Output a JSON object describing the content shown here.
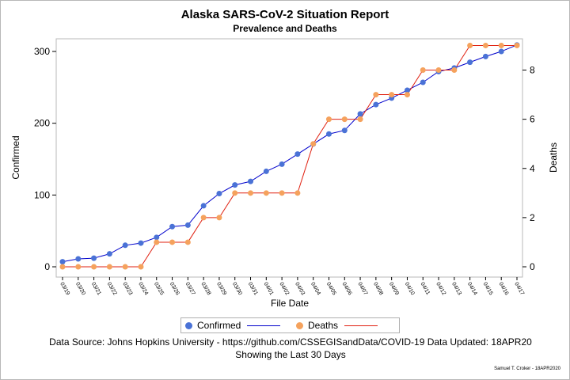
{
  "header": {
    "title": "Alaska SARS-CoV-2 Situation Report",
    "subtitle": "Prevalence and Deaths"
  },
  "chart_data": {
    "type": "line",
    "title": "Alaska SARS-CoV-2 Situation Report",
    "subtitle": "Prevalence and Deaths",
    "xlabel": "File Date",
    "ylabel_left": "Confirmed",
    "ylabel_right": "Deaths",
    "y_left_lim": [
      0,
      320
    ],
    "y_left_ticks": [
      0,
      100,
      200,
      300
    ],
    "y_right_lim": [
      0,
      9.27
    ],
    "y_right_ticks": [
      0,
      2,
      4,
      6,
      8
    ],
    "grid": false,
    "legend_position": "bottom",
    "categories": [
      "03/19",
      "03/20",
      "03/21",
      "03/22",
      "03/23",
      "03/24",
      "03/25",
      "03/26",
      "03/27",
      "03/28",
      "03/29",
      "03/30",
      "03/31",
      "04/01",
      "04/02",
      "04/03",
      "04/04",
      "04/05",
      "04/06",
      "04/07",
      "04/08",
      "04/09",
      "04/10",
      "04/11",
      "04/12",
      "04/13",
      "04/14",
      "04/15",
      "04/16",
      "04/17"
    ],
    "series": [
      {
        "name": "Confirmed",
        "axis": "left",
        "marker_color": "#4a72d6",
        "line_color": "#0000cc",
        "values": [
          7,
          11,
          12,
          18,
          30,
          33,
          41,
          56,
          58,
          85,
          102,
          114,
          119,
          133,
          143,
          157,
          171,
          185,
          190,
          213,
          226,
          235,
          246,
          257,
          272,
          277,
          285,
          293,
          300,
          309
        ]
      },
      {
        "name": "Deaths",
        "axis": "right",
        "marker_color": "#f5a25d",
        "line_color": "#e02010",
        "values": [
          0,
          0,
          0,
          0,
          0,
          0,
          1,
          1,
          1,
          2,
          2,
          3,
          3,
          3,
          3,
          3,
          5,
          6,
          6,
          6,
          7,
          7,
          7,
          8,
          8,
          8,
          9,
          9,
          9,
          9
        ]
      }
    ]
  },
  "footer": {
    "source": "Data Source: Johns Hopkins University - https://github.com/CSSEGISandData/COVID-19 Data Updated: 18APR20",
    "range_note": "Showing the Last 30 Days",
    "credit": "Samuel T. Croker - 18APR2020"
  }
}
